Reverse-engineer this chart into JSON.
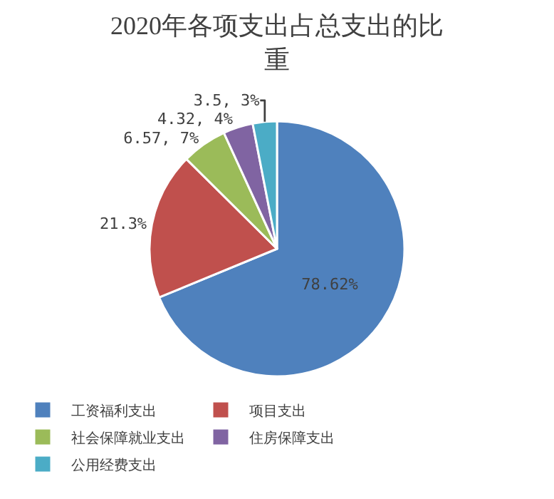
{
  "chart_data": {
    "type": "pie",
    "title": "2020年各项支出占总支出的比重",
    "categories": [
      "工资福利支出",
      "项目支出",
      "社会保障就业支出",
      "住房保障支出",
      "公用经费支出"
    ],
    "values": [
      78.62,
      21.3,
      6.57,
      4.32,
      3.5
    ],
    "value_labels": [
      "78.62%",
      "21.3%",
      "6.57, 7%",
      "4.32, 4%",
      "3.5, 3%"
    ],
    "colors": [
      "#4f81bd",
      "#c0504d",
      "#9bbb59",
      "#8064a2",
      "#4bacc6"
    ],
    "legend": "bottom"
  }
}
